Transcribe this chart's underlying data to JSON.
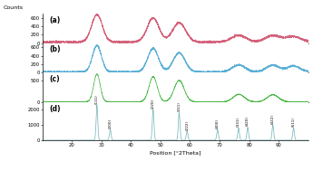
{
  "title_label": "Counts",
  "xlabel": "Position [°2Theta]",
  "xlim": [
    10,
    100
  ],
  "xticks": [
    20,
    30,
    40,
    50,
    60,
    70,
    80,
    90
  ],
  "panel_labels": [
    "(a)",
    "(b)",
    "(c)",
    "(d)"
  ],
  "colors": {
    "a": "#d4607a",
    "b": "#5bafd6",
    "c": "#4db84a",
    "d": "#7ab8be"
  },
  "panel_a_ylim": [
    0,
    700
  ],
  "panel_b_ylim": [
    0,
    700
  ],
  "panel_c_ylim": [
    0,
    700
  ],
  "panel_d_ylim": [
    0,
    2500
  ],
  "panel_a_yticks": [
    0,
    200,
    400,
    600
  ],
  "panel_b_yticks": [
    0,
    200,
    400,
    600
  ],
  "panel_c_yticks": [
    0,
    500
  ],
  "panel_d_yticks": [
    0,
    1000,
    2000
  ],
  "peaks_abc": [
    28.5,
    47.5,
    56.3,
    76.5,
    88.0,
    95.0
  ],
  "ref_peaks": [
    28.5,
    33.0,
    47.5,
    56.3,
    59.0,
    69.3,
    76.4,
    79.5,
    88.0,
    95.0
  ],
  "ref_amps": [
    2300,
    700,
    2000,
    1800,
    600,
    700,
    800,
    850,
    1000,
    800
  ],
  "ref_widths": [
    0.28,
    0.28,
    0.28,
    0.28,
    0.28,
    0.28,
    0.28,
    0.28,
    0.28,
    0.28
  ],
  "miller_labels": [
    "111",
    "200",
    "220",
    "311",
    "222",
    "400",
    "331",
    "420",
    "422",
    "511"
  ],
  "miller_positions": [
    28.5,
    33.0,
    47.5,
    56.3,
    59.0,
    69.3,
    76.4,
    79.5,
    88.0,
    95.0
  ]
}
